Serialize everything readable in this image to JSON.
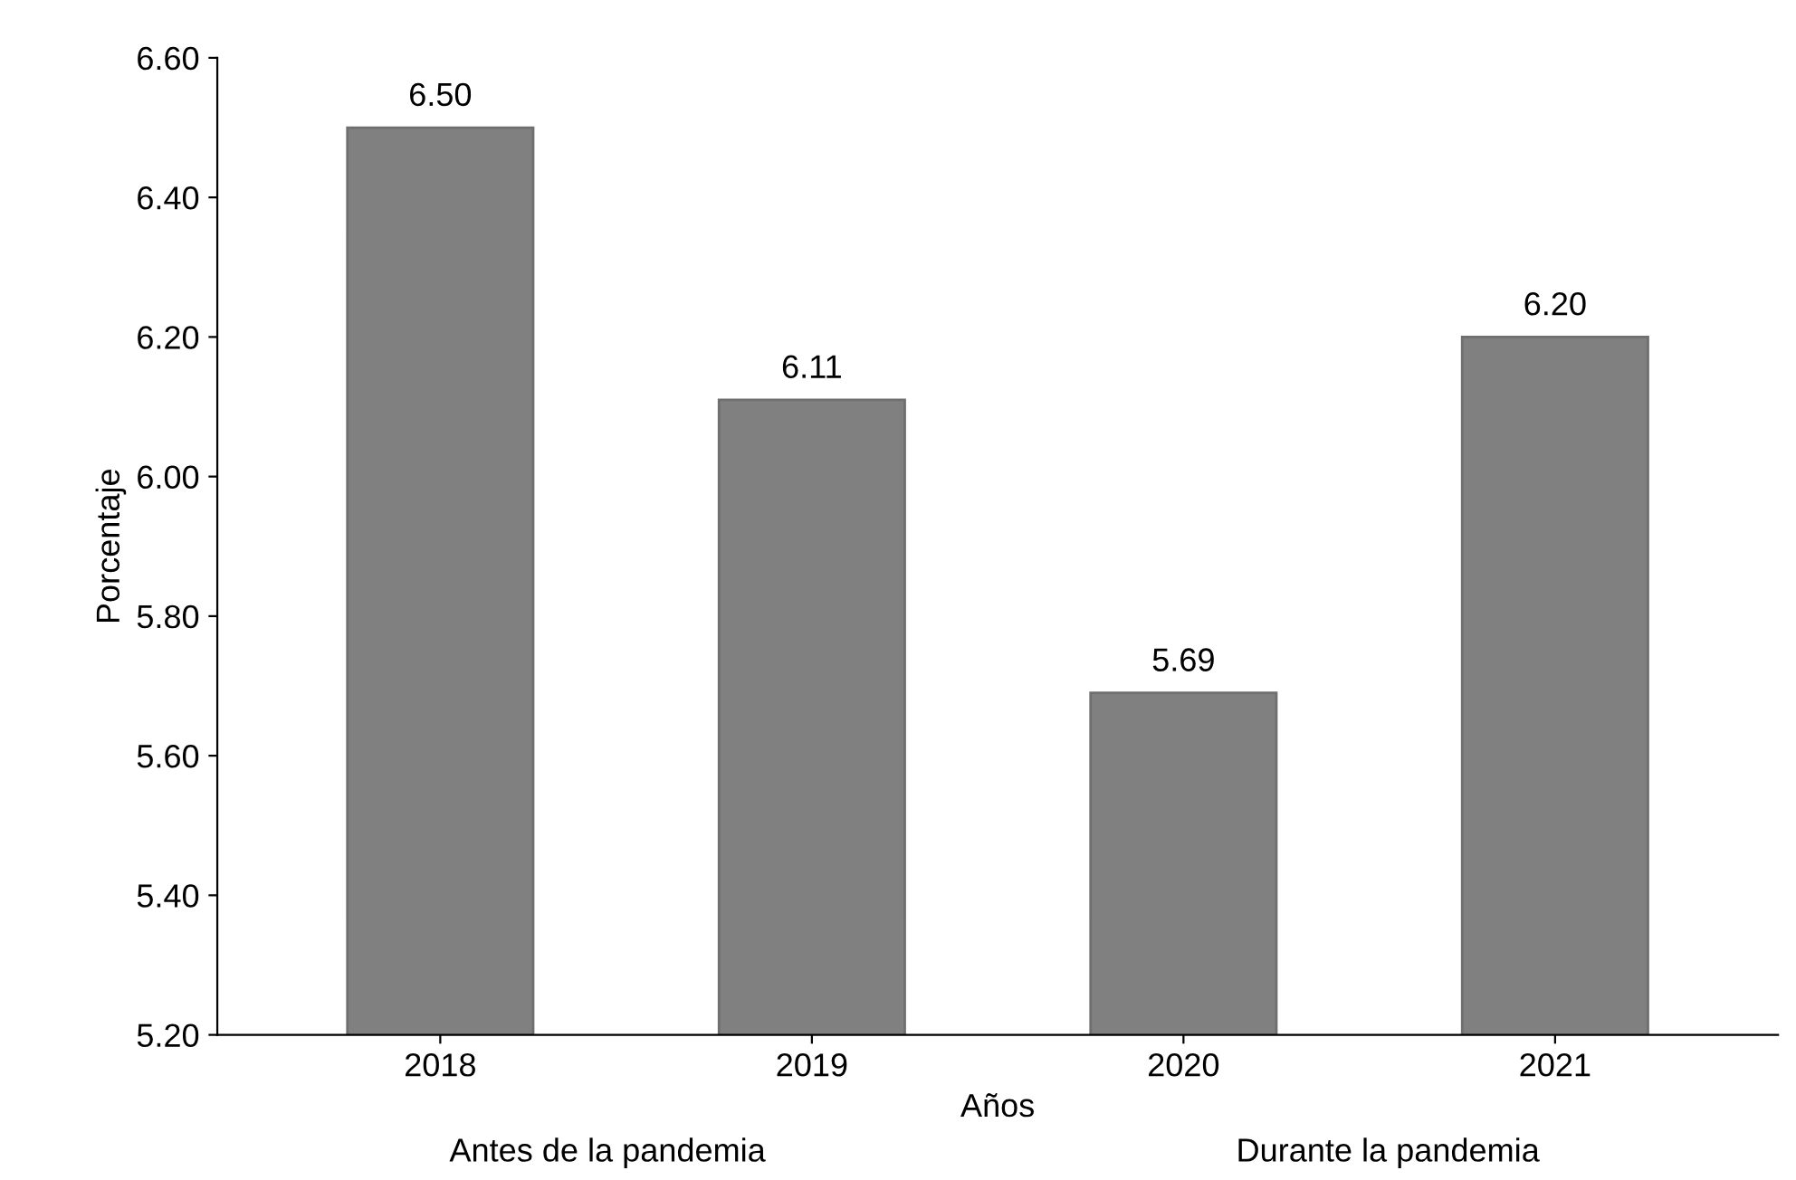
{
  "chart_data": {
    "type": "bar",
    "xlabel": "Años",
    "ylabel": "Porcentaje",
    "categories": [
      "2018",
      "2019",
      "2020",
      "2021"
    ],
    "values": [
      6.5,
      6.11,
      5.69,
      6.2
    ],
    "value_labels": [
      "6.50",
      "6.11",
      "5.69",
      "6.20"
    ],
    "color": "#808080",
    "ylim": [
      5.2,
      6.6
    ],
    "yticks": [
      {
        "value": 5.2,
        "label": "5.20"
      },
      {
        "value": 5.4,
        "label": "5.40"
      },
      {
        "value": 5.6,
        "label": "5.60"
      },
      {
        "value": 5.8,
        "label": "5.80"
      },
      {
        "value": 6.0,
        "label": "6.00"
      },
      {
        "value": 6.2,
        "label": "6.20"
      },
      {
        "value": 6.4,
        "label": "6.40"
      },
      {
        "value": 6.6,
        "label": "6.60"
      }
    ],
    "annotations": [
      "Antes de la pandemia",
      "Durante la pandemia"
    ]
  }
}
